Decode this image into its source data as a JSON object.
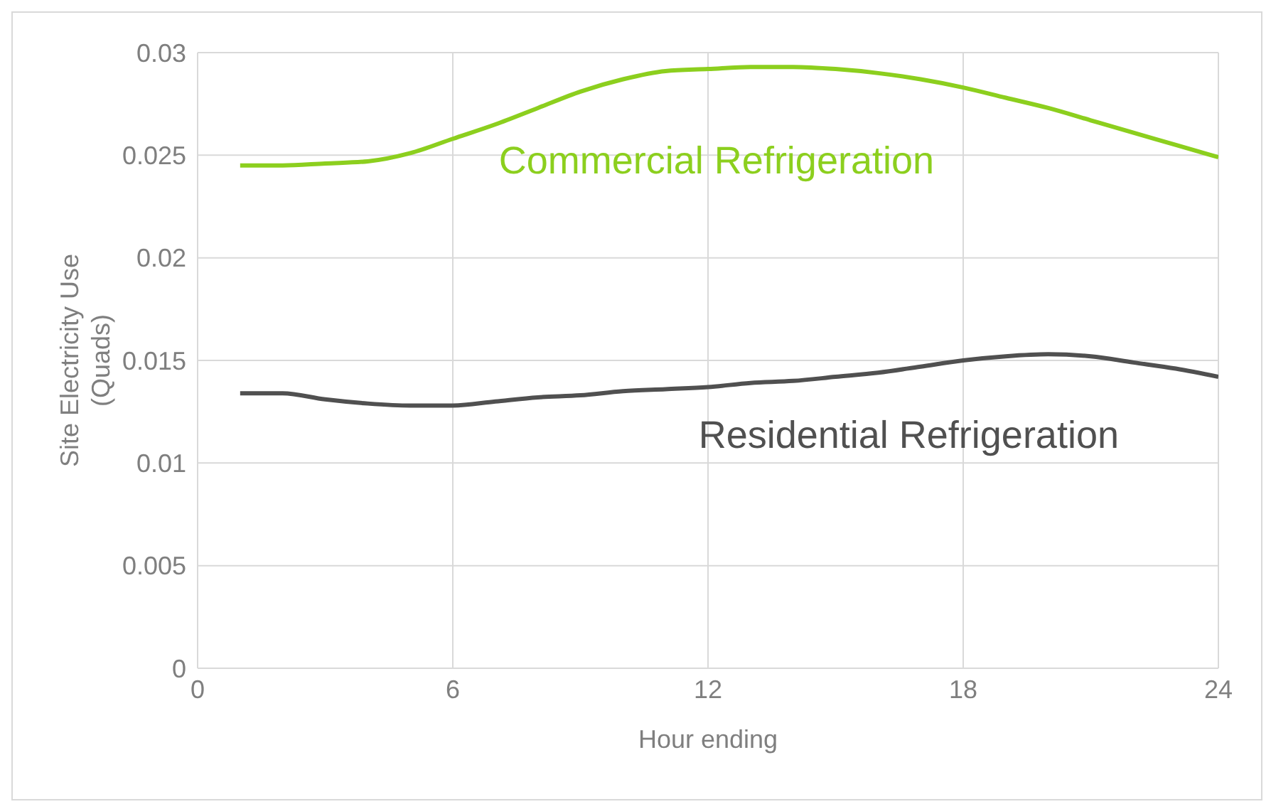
{
  "chart_data": {
    "type": "line",
    "xlabel": "Hour ending",
    "ylabel": "Site Electricity Use (Quads)",
    "x": [
      1,
      2,
      3,
      4,
      5,
      6,
      7,
      8,
      9,
      10,
      11,
      12,
      13,
      14,
      15,
      16,
      17,
      18,
      19,
      20,
      21,
      22,
      23,
      24
    ],
    "series": [
      {
        "name": "Commercial Refrigeration",
        "color": "#8ccf1e",
        "values": [
          0.0245,
          0.0245,
          0.0246,
          0.0247,
          0.0251,
          0.0258,
          0.0265,
          0.0273,
          0.0281,
          0.0287,
          0.0291,
          0.0292,
          0.0293,
          0.0293,
          0.0292,
          0.029,
          0.0287,
          0.0283,
          0.0278,
          0.0273,
          0.0267,
          0.0261,
          0.0255,
          0.0249
        ]
      },
      {
        "name": "Residential Refrigeration",
        "color": "#505050",
        "values": [
          0.0134,
          0.0134,
          0.0131,
          0.0129,
          0.0128,
          0.0128,
          0.013,
          0.0132,
          0.0133,
          0.0135,
          0.0136,
          0.0137,
          0.0139,
          0.014,
          0.0142,
          0.0144,
          0.0147,
          0.015,
          0.0152,
          0.0153,
          0.0152,
          0.0149,
          0.0146,
          0.0142
        ]
      }
    ],
    "xlim": [
      0,
      24
    ],
    "xticks": [
      0,
      6,
      12,
      18,
      24
    ],
    "ylim": [
      0,
      0.03
    ],
    "yticks": [
      0,
      0.005,
      0.01,
      0.015,
      0.02,
      0.025,
      0.03
    ],
    "grid": true,
    "legend": false,
    "marker": "none",
    "line_style": "solid"
  }
}
